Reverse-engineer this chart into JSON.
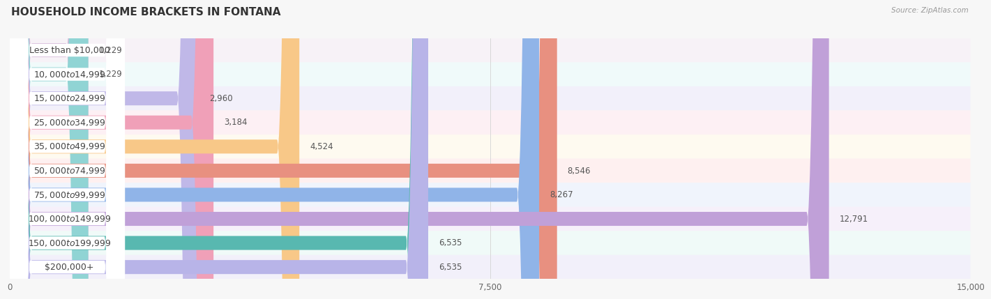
{
  "title": "HOUSEHOLD INCOME BRACKETS IN FONTANA",
  "source": "Source: ZipAtlas.com",
  "categories": [
    "Less than $10,000",
    "$10,000 to $14,999",
    "$15,000 to $24,999",
    "$25,000 to $34,999",
    "$35,000 to $49,999",
    "$50,000 to $74,999",
    "$75,000 to $99,999",
    "$100,000 to $149,999",
    "$150,000 to $199,999",
    "$200,000+"
  ],
  "values": [
    1229,
    1229,
    2960,
    3184,
    4524,
    8546,
    8267,
    12791,
    6535,
    6535
  ],
  "bar_colors": [
    "#d4b8d8",
    "#90d4d4",
    "#c0b8e8",
    "#f0a0b8",
    "#f8c888",
    "#e89080",
    "#90b4e8",
    "#c0a0d8",
    "#58b8b0",
    "#b8b4e8"
  ],
  "row_bg_colors": [
    "#f7f2f7",
    "#f0fafa",
    "#f2f0fa",
    "#fdf0f4",
    "#fefaf0",
    "#fef0f0",
    "#f0f4fc",
    "#f6f0fa",
    "#f0faf8",
    "#f2f0fa"
  ],
  "xlim": [
    0,
    15000
  ],
  "xticks": [
    0,
    7500,
    15000
  ],
  "xticklabels": [
    "0",
    "7,500",
    "15,000"
  ],
  "background_color": "#f7f7f7",
  "grid_color": "#d8d8d8",
  "title_fontsize": 11,
  "label_fontsize": 9,
  "value_fontsize": 8.5,
  "source_fontsize": 7.5
}
